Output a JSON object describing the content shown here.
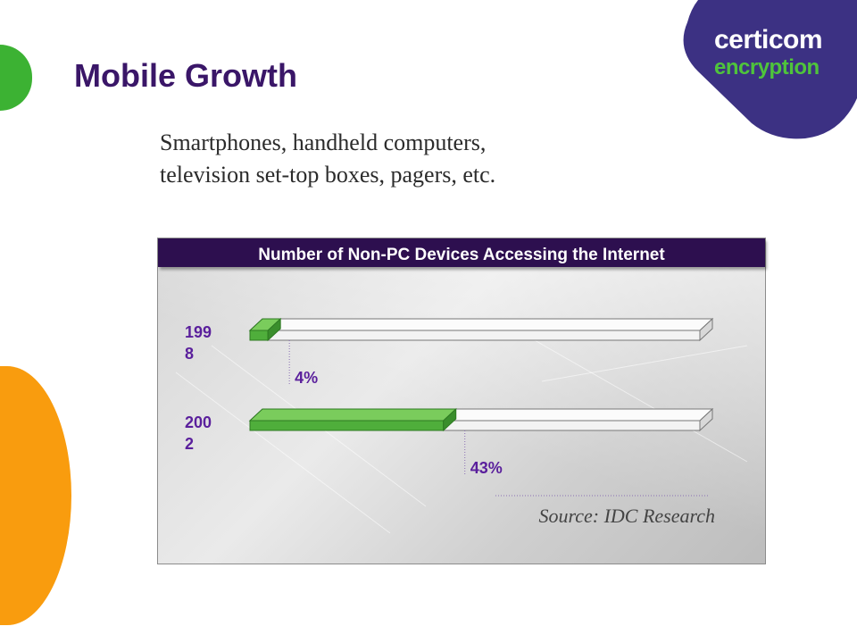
{
  "slide": {
    "title": "Mobile Growth",
    "subtitle_lines": [
      "Smartphones, handheld computers,",
      "television set-top boxes, pagers, etc."
    ]
  },
  "logo": {
    "name": "certicom",
    "tagline": "encryption"
  },
  "colors": {
    "title": "#3a1668",
    "logo_bg": "#3c3183",
    "accent_green": "#3cb233",
    "accent_orange": "#f99c0e",
    "bar_fill": "#4fae3b",
    "header_bg": "#2d0f4f",
    "label": "#5a1f9c"
  },
  "chart_data": {
    "type": "bar",
    "orientation": "horizontal",
    "title": "Number of Non-PC Devices Accessing the Internet",
    "categories": [
      "1998",
      "2002"
    ],
    "category_labels": [
      [
        "199",
        "8"
      ],
      [
        "200",
        "2"
      ]
    ],
    "values": [
      4,
      43
    ],
    "data_labels": [
      "4%",
      "43%"
    ],
    "xlim": [
      0,
      100
    ],
    "unit": "%",
    "source": "Source:  IDC Research"
  }
}
